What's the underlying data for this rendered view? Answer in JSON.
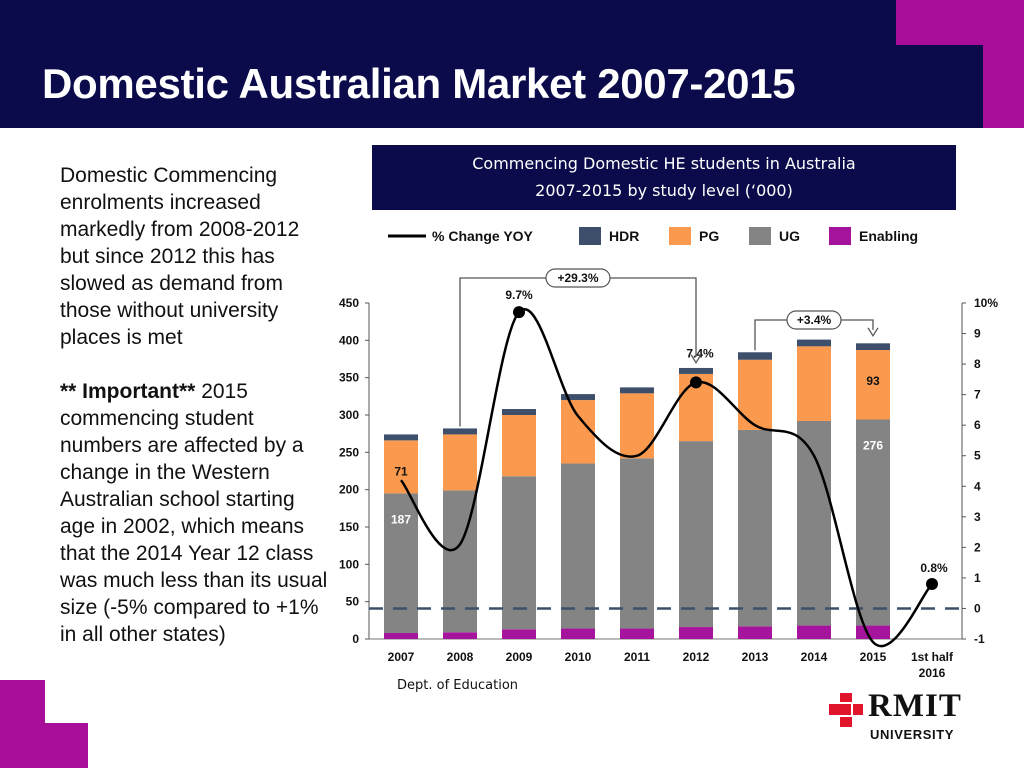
{
  "header": {
    "title": "Domestic Australian Market 2007-2015"
  },
  "intro": {
    "paragraph1": "Domestic Commencing enrolments increased markedly from 2008-2012 but since 2012 this has slowed as demand from those without university places is met",
    "important_label": "** Important**",
    "paragraph2": " 2015 commencing student numbers are affected by a change in the Western Australian school starting age in 2002, which means that the 2014 Year 12 class was much less than its usual size (-5% compared to +1% in all other states)"
  },
  "chart_header": {
    "line1": "Commencing Domestic HE students in Australia",
    "line2": "2007-2015 by study level (‘000)"
  },
  "source": "Dept. of Education",
  "logo": {
    "wordmark": "RMIT",
    "subtitle": "UNIVERSITY",
    "icon": "rmit-logo-icon"
  },
  "colors": {
    "header_bg": "#0b0b4b",
    "accent": "#a80e9a",
    "HDR": "#3d4f6b",
    "PG": "#fb9a4e",
    "UG": "#848484",
    "Enabling": "#a6149e",
    "line": "#000000"
  },
  "chart_data": {
    "type": "bar",
    "stacked": true,
    "title": "Commencing Domestic HE students in Australia 2007-2015 by study level (‘000)",
    "categories": [
      "2007",
      "2008",
      "2009",
      "2010",
      "2011",
      "2012",
      "2013",
      "2014",
      "2015",
      "1st half 2016"
    ],
    "category_display": [
      [
        "2007"
      ],
      [
        "2008"
      ],
      [
        "2009"
      ],
      [
        "2010"
      ],
      [
        "2011"
      ],
      [
        "2012"
      ],
      [
        "2013"
      ],
      [
        "2014"
      ],
      [
        "2015"
      ],
      [
        "1st half",
        "2016"
      ]
    ],
    "series": [
      {
        "name": "Enabling",
        "values": [
          8,
          9,
          13,
          14,
          14,
          16,
          17,
          18,
          18,
          null
        ]
      },
      {
        "name": "UG",
        "values": [
          187,
          190,
          205,
          221,
          228,
          249,
          263,
          274,
          276,
          null
        ]
      },
      {
        "name": "PG",
        "values": [
          71,
          75,
          82,
          85,
          87,
          90,
          94,
          100,
          93,
          null
        ]
      },
      {
        "name": "HDR",
        "values": [
          8,
          8,
          8,
          8,
          8,
          8,
          10,
          9,
          9,
          null
        ]
      }
    ],
    "line_series": {
      "name": "% Change YOY",
      "axis": "right",
      "values": [
        4.2,
        2.1,
        9.7,
        6.3,
        5.0,
        7.4,
        6.0,
        5.0,
        -1.1,
        0.8
      ],
      "markers": [
        2,
        5,
        9
      ]
    },
    "legend": [
      "% Change YOY",
      "HDR",
      "PG",
      "UG",
      "Enabling"
    ],
    "legend_position": "top",
    "yaxis_left": {
      "min": 0,
      "max": 450,
      "ticks": [
        "0",
        "50",
        "100",
        "150",
        "200",
        "250",
        "300",
        "350",
        "400",
        "450"
      ]
    },
    "yaxis_right": {
      "min": -1,
      "max": 10,
      "ticks": [
        "-1",
        "0",
        "1",
        "2",
        "3",
        "4",
        "5",
        "6",
        "7",
        "8",
        "9",
        "10%"
      ]
    },
    "reference_line": {
      "axis": "right",
      "value": 0,
      "style": "dashed"
    },
    "data_labels": [
      {
        "text": "71",
        "series": "PG",
        "category": 0
      },
      {
        "text": "187",
        "series": "UG",
        "category": 0
      },
      {
        "text": "93",
        "series": "PG",
        "category": 8
      },
      {
        "text": "276",
        "series": "UG",
        "category": 8
      },
      {
        "text": "9.7%",
        "line_point": 2
      },
      {
        "text": "7.4%",
        "line_point": 5
      },
      {
        "text": "0.8%",
        "line_point": 9
      }
    ],
    "annotations": [
      {
        "text": "+29.3%",
        "from": "2008",
        "to": "2012"
      },
      {
        "text": "+3.4%",
        "from": "2013",
        "to": "2015"
      }
    ],
    "grid": false
  }
}
